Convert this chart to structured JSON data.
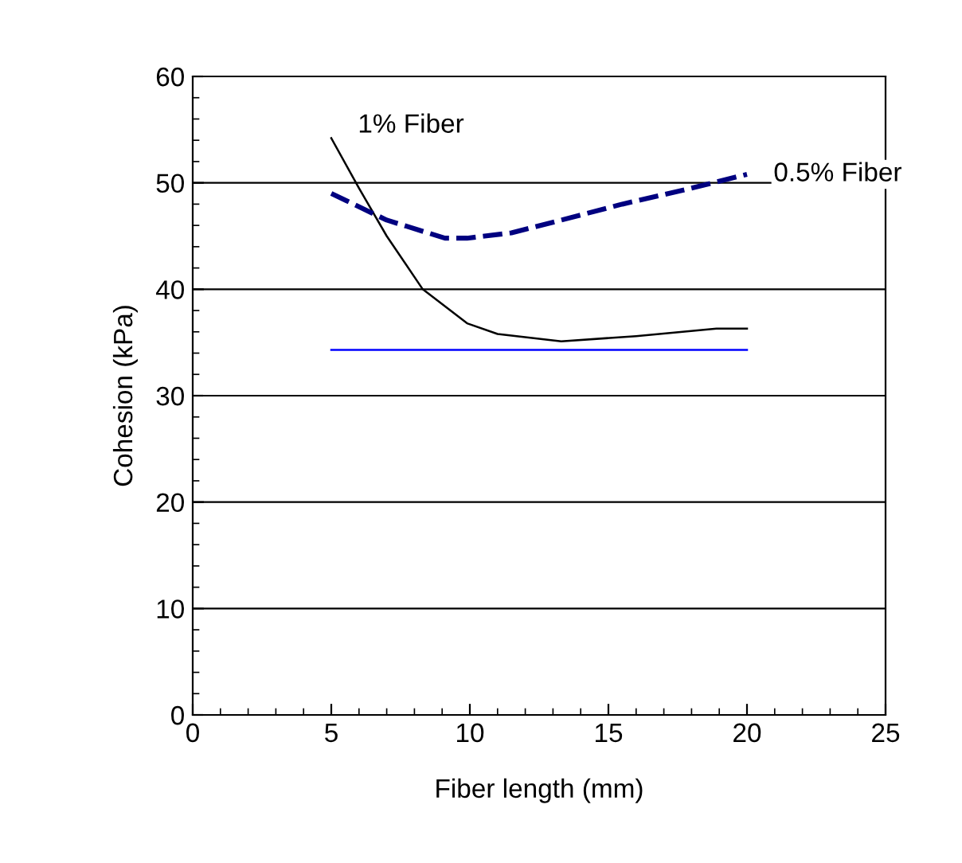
{
  "chart_data": {
    "type": "line",
    "xlabel": "Fiber length (mm)",
    "ylabel": "Cohesion (kPa)",
    "xlim": [
      0,
      25
    ],
    "xticks": [
      0,
      5,
      10,
      15,
      20,
      25
    ],
    "ylim": [
      0,
      60
    ],
    "yticks": [
      0,
      10,
      20,
      30,
      40,
      50,
      60
    ],
    "grid": "y",
    "legend": false,
    "marker": "none",
    "series": [
      {
        "name": "1% Fiber",
        "color": "#000000",
        "line_style": "solid",
        "x": [
          5,
          6,
          7,
          8.3,
          9.9,
          11,
          13.3,
          16,
          18.9,
          20
        ],
        "values": [
          54.2,
          49.5,
          45,
          40,
          36.8,
          35.8,
          35.1,
          35.6,
          36.3,
          36.3
        ]
      },
      {
        "name": "0.5% Fiber",
        "color": "#000080",
        "line_style": "dashed",
        "x": [
          5,
          7,
          9.1,
          9.9,
          11.5,
          13.3,
          15.5,
          18,
          20
        ],
        "values": [
          49,
          46.5,
          44.8,
          44.8,
          45.3,
          46.5,
          48,
          49.5,
          50.8
        ]
      },
      {
        "color": "#0000ff",
        "line_style": "solid",
        "x": [
          5,
          20
        ],
        "values": [
          34.3,
          34.3
        ]
      }
    ]
  }
}
